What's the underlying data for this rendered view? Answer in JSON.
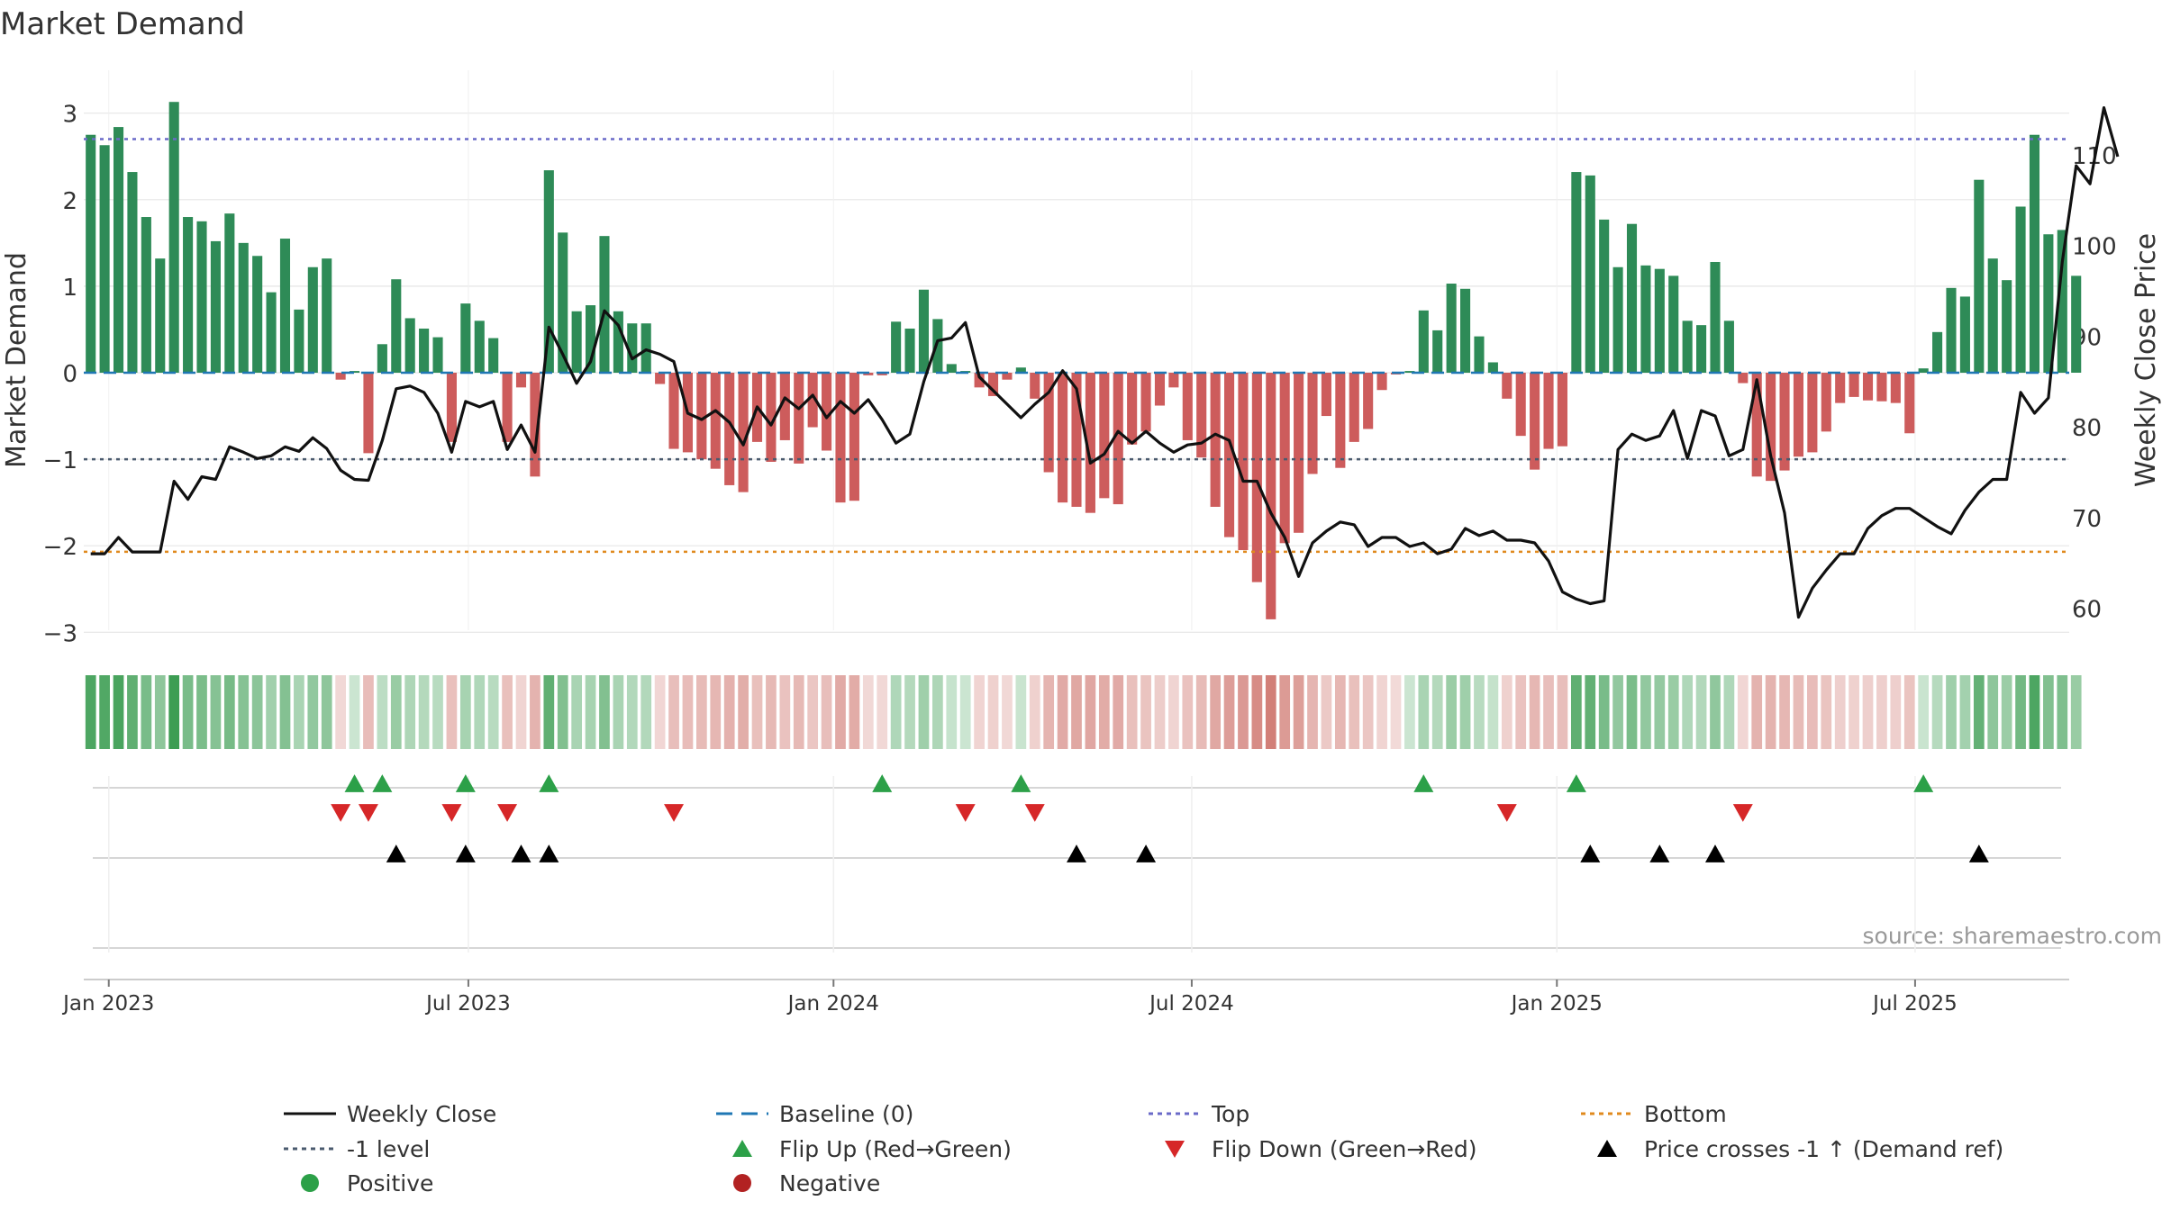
{
  "chart_data": {
    "type": "bar+line",
    "title": "Market Demand",
    "ylabel_left": "Market Demand",
    "ylabel_right": "Weekly Close Price",
    "ylim_left": [
      -3.3,
      3.4
    ],
    "ylim_right": [
      56,
      117
    ],
    "yticks_left": [
      3,
      2,
      1,
      0,
      -1,
      -2,
      -3
    ],
    "ytick_labels_left": [
      "3",
      "2",
      "1",
      "0",
      "−1",
      "−2",
      "−3"
    ],
    "yticks_right": [
      110,
      100,
      90,
      80,
      70,
      60
    ],
    "ytick_labels_right": [
      "110",
      "100",
      "90",
      "80",
      "70",
      "60"
    ],
    "x_start": "2022-12-23",
    "week_count": 143,
    "date_ticks": [
      {
        "label": "Jan 2023",
        "week": 1.3
      },
      {
        "label": "Jul 2023",
        "week": 27.2
      },
      {
        "label": "Jan 2024",
        "week": 53.5
      },
      {
        "label": "Jul 2024",
        "week": 79.3
      },
      {
        "label": "Jan 2025",
        "week": 105.6
      },
      {
        "label": "Jul 2025",
        "week": 131.4
      }
    ],
    "reference_lines": {
      "baseline": 0,
      "top": 2.7,
      "minus_one": -1,
      "bottom": -2.07
    },
    "demand": [
      2.75,
      2.63,
      2.84,
      2.32,
      1.8,
      1.32,
      3.13,
      1.8,
      1.75,
      1.52,
      1.84,
      1.5,
      1.35,
      0.93,
      1.55,
      0.73,
      1.22,
      1.32,
      -0.08,
      0.02,
      -0.93,
      0.33,
      1.08,
      0.63,
      0.51,
      0.41,
      -0.8,
      0.8,
      0.6,
      0.4,
      -0.8,
      -0.17,
      -1.2,
      2.34,
      1.62,
      0.71,
      0.78,
      1.58,
      0.71,
      0.57,
      0.57,
      -0.13,
      -0.88,
      -0.92,
      -1.0,
      -1.11,
      -1.3,
      -1.38,
      -0.8,
      -1.03,
      -0.78,
      -1.05,
      -0.63,
      -0.9,
      -1.5,
      -1.48,
      -0.03,
      -0.03,
      0.59,
      0.51,
      0.96,
      0.62,
      0.1,
      0.02,
      -0.17,
      -0.27,
      -0.08,
      0.06,
      -0.3,
      -1.15,
      -1.5,
      -1.55,
      -1.62,
      -1.45,
      -1.52,
      -0.83,
      -0.68,
      -0.38,
      -0.17,
      -0.78,
      -0.98,
      -1.55,
      -1.9,
      -2.05,
      -2.42,
      -2.85,
      -1.97,
      -1.85,
      -1.17,
      -0.5,
      -1.1,
      -0.8,
      -0.65,
      -0.2,
      -0.02,
      0.02,
      0.72,
      0.49,
      1.03,
      0.97,
      0.42,
      0.12,
      -0.3,
      -0.73,
      -1.12,
      -0.88,
      -0.85,
      2.32,
      2.28,
      1.77,
      1.22,
      1.72,
      1.24,
      1.2,
      1.12,
      0.6,
      0.55,
      1.28,
      0.6,
      -0.12,
      -1.2,
      -1.25,
      -1.13,
      -0.97,
      -0.92,
      -0.68,
      -0.35,
      -0.28,
      -0.32,
      -0.33,
      -0.35,
      -0.7,
      0.05,
      0.47,
      0.98,
      0.88,
      2.23,
      1.32,
      1.07,
      1.92,
      2.75,
      1.6,
      1.65,
      1.12
    ],
    "weekly_close": [
      66,
      66,
      67.8,
      66.2,
      66.2,
      66.2,
      74,
      72,
      74.5,
      74.2,
      77.8,
      77.2,
      76.5,
      76.8,
      77.8,
      77.3,
      78.8,
      77.6,
      75.2,
      74.2,
      74.1,
      78.5,
      84.2,
      84.5,
      83.8,
      81.5,
      77.2,
      82.8,
      82.2,
      82.8,
      77.5,
      80.2,
      77.2,
      91,
      88,
      84.8,
      87.2,
      92.8,
      91.2,
      87.5,
      88.5,
      88,
      87.2,
      81.5,
      80.8,
      81.8,
      80.5,
      78,
      82.2,
      80.2,
      83.2,
      82,
      83.5,
      81,
      82.8,
      81.5,
      83,
      80.8,
      78.2,
      79.2,
      85,
      89.5,
      89.8,
      91.5,
      85.5,
      84,
      82.5,
      81,
      82.5,
      83.8,
      86.2,
      84.2,
      76,
      77,
      79.5,
      78.2,
      79.5,
      78.2,
      77.2,
      78,
      78.2,
      79.2,
      78.5,
      74,
      74,
      70.5,
      67.8,
      63.5,
      67.2,
      68.5,
      69.5,
      69.2,
      66.8,
      67.8,
      67.8,
      66.8,
      67.2,
      66,
      66.5,
      68.8,
      68,
      68.5,
      67.5,
      67.5,
      67.2,
      65.2,
      61.8,
      61,
      60.5,
      60.8,
      77.5,
      79.2,
      78.5,
      79,
      81.8,
      76.5,
      81.8,
      81.2,
      76.8,
      77.5,
      85.2,
      76.8,
      70.5,
      59,
      62.2,
      64.2,
      66,
      66,
      68.8,
      70.2,
      71,
      71,
      70,
      69,
      68.2,
      70.8,
      72.8,
      74.2,
      74.2,
      83.8,
      81.5,
      83.2,
      98.2,
      108.8,
      106.8,
      115.2,
      109.8
    ],
    "heat_strip": "demand-colored strip (green = positive, red = negative)",
    "markers": {
      "flip_up_weeks": [
        19,
        21,
        27,
        33,
        57,
        67,
        96,
        107,
        132
      ],
      "flip_down_weeks": [
        18,
        20,
        26,
        30,
        42,
        63,
        68,
        102,
        119
      ],
      "price_cross_weeks": [
        22,
        27,
        31,
        33,
        71,
        76,
        108,
        113,
        117,
        136
      ]
    },
    "source": "source: sharemaestro.com",
    "legend": [
      {
        "label": "Weekly Close",
        "symbol": "solid-line",
        "color": "#111111"
      },
      {
        "label": "Baseline (0)",
        "symbol": "dash-line",
        "color": "#1f77b4"
      },
      {
        "label": "Top",
        "symbol": "dot-line",
        "color": "#6a6ac8"
      },
      {
        "label": "Bottom",
        "symbol": "dot-line",
        "color": "#e08a1e"
      },
      {
        "label": "-1 level",
        "symbol": "dot-line",
        "color": "#4a5a6e"
      },
      {
        "label": "Flip Up (Red→Green)",
        "symbol": "triangle-up",
        "color": "#2ca048"
      },
      {
        "label": "Flip Down (Green→Red)",
        "symbol": "triangle-down",
        "color": "#d62728"
      },
      {
        "label": "Price crosses -1 ↑ (Demand ref)",
        "symbol": "triangle-up",
        "color": "#000000"
      },
      {
        "label": "Positive",
        "symbol": "circle",
        "color": "#2ca048"
      },
      {
        "label": "Negative",
        "symbol": "circle",
        "color": "#b22222"
      }
    ],
    "colors": {
      "positive_bar": "#2e8b57",
      "negative_bar": "#cd5c5c",
      "close_line": "#111111",
      "baseline": "#1f77b4",
      "top": "#6a6ac8",
      "minus_one": "#4a5a6e",
      "bottom": "#e08a1e",
      "flip_up": "#2ca048",
      "flip_down": "#d62728",
      "cross": "#000000",
      "grid": "#e6e6e6"
    }
  }
}
